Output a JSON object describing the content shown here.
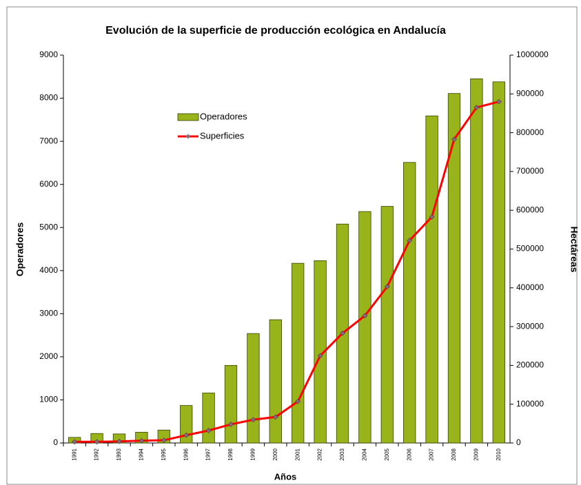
{
  "chart_data": {
    "type": "bar",
    "title": "Evolución de la superficie de producción ecológica en Andalucía",
    "x_label": "Años",
    "y_label": "Operadores",
    "y2_label": "Hectáreas",
    "categories": [
      "1991",
      "1992",
      "1993",
      "1994",
      "1995",
      "1996",
      "1997",
      "1998",
      "1999",
      "2000",
      "2001",
      "2002",
      "2003",
      "2004",
      "2005",
      "2006",
      "2007",
      "2008",
      "2009",
      "2010"
    ],
    "series": [
      {
        "name": "Operadores",
        "type": "bar",
        "color": "#99b31a",
        "values": [
          130,
          220,
          210,
          250,
          300,
          870,
          1160,
          1800,
          2540,
          2860,
          4170,
          4230,
          5080,
          5370,
          5490,
          6510,
          7590,
          8110,
          8450,
          8380
        ]
      },
      {
        "name": "Superficies",
        "type": "line",
        "axis": "y2",
        "color": "#ff0000",
        "values": [
          3000,
          3000,
          4000,
          6000,
          7000,
          20000,
          32000,
          48000,
          60000,
          67000,
          107000,
          225000,
          283000,
          328000,
          403000,
          522000,
          583000,
          783000,
          865000,
          880000
        ]
      }
    ],
    "ylim": [
      0,
      9000
    ],
    "yticks": [
      0,
      1000,
      2000,
      3000,
      4000,
      5000,
      6000,
      7000,
      8000,
      9000
    ],
    "y2lim": [
      0,
      1000000
    ],
    "y2ticks": [
      0,
      100000,
      200000,
      300000,
      400000,
      500000,
      600000,
      700000,
      800000,
      900000,
      1000000
    ],
    "grid": false,
    "legend": "upper left"
  }
}
